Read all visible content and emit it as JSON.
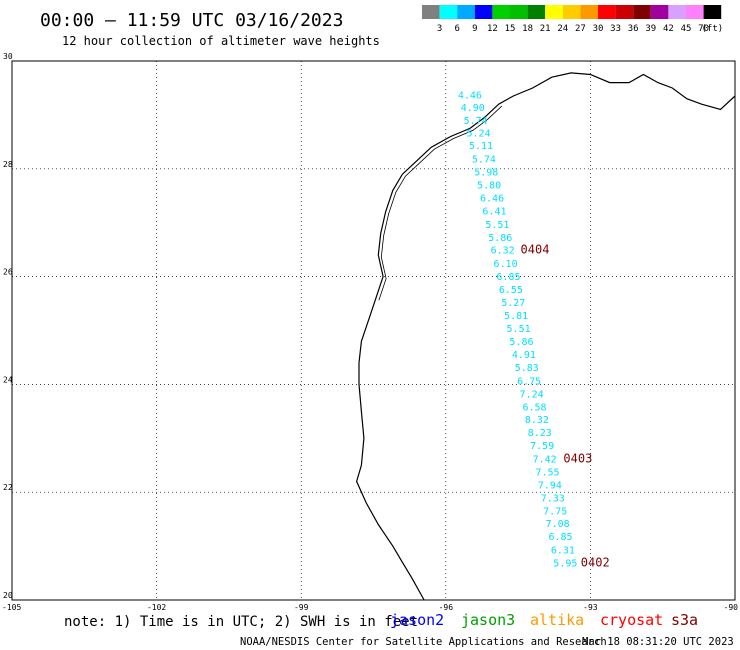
{
  "header": {
    "title": "00:00 – 11:59 UTC 03/16/2023",
    "subtitle": "12 hour collection of altimeter wave heights"
  },
  "legend": {
    "unit": "(ft)",
    "bins": [
      {
        "label": "3",
        "color": "#808080"
      },
      {
        "label": "6",
        "color": "#00ffff"
      },
      {
        "label": "9",
        "color": "#00aaff"
      },
      {
        "label": "12",
        "color": "#0000ff"
      },
      {
        "label": "15",
        "color": "#00d000"
      },
      {
        "label": "18",
        "color": "#00c000"
      },
      {
        "label": "21",
        "color": "#008000"
      },
      {
        "label": "24",
        "color": "#ffff00"
      },
      {
        "label": "27",
        "color": "#ffcc00"
      },
      {
        "label": "30",
        "color": "#ff9900"
      },
      {
        "label": "33",
        "color": "#ff0000"
      },
      {
        "label": "36",
        "color": "#cc0000"
      },
      {
        "label": "39",
        "color": "#800000"
      },
      {
        "label": "42",
        "color": "#a000a0"
      },
      {
        "label": "45",
        "color": "#d8a0ff"
      },
      {
        "label": "70",
        "color": "#ff80ff"
      },
      {
        "label": "",
        "color": "#000000"
      }
    ]
  },
  "axes": {
    "lon_ticks": [
      "-105",
      "-102",
      "-99",
      "-96",
      "-93",
      "-90"
    ],
    "lat_ticks": [
      "30",
      "28",
      "26",
      "24",
      "22",
      "20"
    ]
  },
  "track": {
    "color": "#00e0ff",
    "points": [
      {
        "lat": 29.3,
        "lon": -95.5,
        "swh": "4.46"
      },
      {
        "lat": 29.07,
        "lon": -95.44,
        "swh": "4.90"
      },
      {
        "lat": 28.83,
        "lon": -95.38,
        "swh": "5.74"
      },
      {
        "lat": 28.6,
        "lon": -95.32,
        "swh": "5.24"
      },
      {
        "lat": 28.37,
        "lon": -95.27,
        "swh": "5.11"
      },
      {
        "lat": 28.12,
        "lon": -95.21,
        "swh": "5.74"
      },
      {
        "lat": 27.88,
        "lon": -95.16,
        "swh": "5.98"
      },
      {
        "lat": 27.63,
        "lon": -95.1,
        "swh": "5.80"
      },
      {
        "lat": 27.39,
        "lon": -95.04,
        "swh": "6.46"
      },
      {
        "lat": 27.15,
        "lon": -94.99,
        "swh": "6.41"
      },
      {
        "lat": 26.9,
        "lon": -94.93,
        "swh": "5.51"
      },
      {
        "lat": 26.66,
        "lon": -94.87,
        "swh": "5.86"
      },
      {
        "lat": 26.43,
        "lon": -94.82,
        "swh": "6.32"
      },
      {
        "lat": 26.18,
        "lon": -94.76,
        "swh": "6.10"
      },
      {
        "lat": 25.94,
        "lon": -94.7,
        "swh": "6.85"
      },
      {
        "lat": 25.7,
        "lon": -94.65,
        "swh": "6.55"
      },
      {
        "lat": 25.45,
        "lon": -94.6,
        "swh": "5.27"
      },
      {
        "lat": 25.21,
        "lon": -94.54,
        "swh": "5.81"
      },
      {
        "lat": 24.97,
        "lon": -94.49,
        "swh": "5.51"
      },
      {
        "lat": 24.73,
        "lon": -94.43,
        "swh": "5.86"
      },
      {
        "lat": 24.49,
        "lon": -94.38,
        "swh": "4.91"
      },
      {
        "lat": 24.25,
        "lon": -94.32,
        "swh": "5.83"
      },
      {
        "lat": 24.0,
        "lon": -94.27,
        "swh": "6.75"
      },
      {
        "lat": 23.76,
        "lon": -94.22,
        "swh": "7.24"
      },
      {
        "lat": 23.52,
        "lon": -94.16,
        "swh": "6.58"
      },
      {
        "lat": 23.28,
        "lon": -94.11,
        "swh": "8.32"
      },
      {
        "lat": 23.04,
        "lon": -94.05,
        "swh": "8.23"
      },
      {
        "lat": 22.8,
        "lon": -94.0,
        "swh": "7.59"
      },
      {
        "lat": 22.55,
        "lon": -93.95,
        "swh": "7.42"
      },
      {
        "lat": 22.31,
        "lon": -93.89,
        "swh": "7.55"
      },
      {
        "lat": 22.07,
        "lon": -93.84,
        "swh": "7.94"
      },
      {
        "lat": 21.83,
        "lon": -93.78,
        "swh": "7.33"
      },
      {
        "lat": 21.59,
        "lon": -93.73,
        "swh": "7.75"
      },
      {
        "lat": 21.35,
        "lon": -93.68,
        "swh": "7.08"
      },
      {
        "lat": 21.11,
        "lon": -93.62,
        "swh": "6.85"
      },
      {
        "lat": 20.86,
        "lon": -93.57,
        "swh": "6.31"
      },
      {
        "lat": 20.62,
        "lon": -93.52,
        "swh": "5.95"
      }
    ]
  },
  "pass_labels": [
    {
      "text": "0404",
      "lat": 26.43,
      "lon": -94.15,
      "color": "#800000"
    },
    {
      "text": "0403",
      "lat": 22.55,
      "lon": -93.26,
      "color": "#800000"
    },
    {
      "text": "0402",
      "lat": 20.62,
      "lon": -92.9,
      "color": "#800000"
    }
  ],
  "footer": {
    "note": "note: 1) Time is in UTC; 2) SWH is in feet",
    "missions": [
      {
        "text": "jason2",
        "color": "#0000ff"
      },
      {
        "text": "jason3",
        "color": "#00a000"
      },
      {
        "text": "altika",
        "color": "#ff9900"
      },
      {
        "text": "cryosat",
        "color": "#ff0000"
      },
      {
        "text": "s3a",
        "color": "#800000"
      }
    ],
    "credit": "NOAA/NESDIS Center for Satellite Applications and Research",
    "timestamp": "Mar 18 08:31:20 UTC 2023"
  }
}
